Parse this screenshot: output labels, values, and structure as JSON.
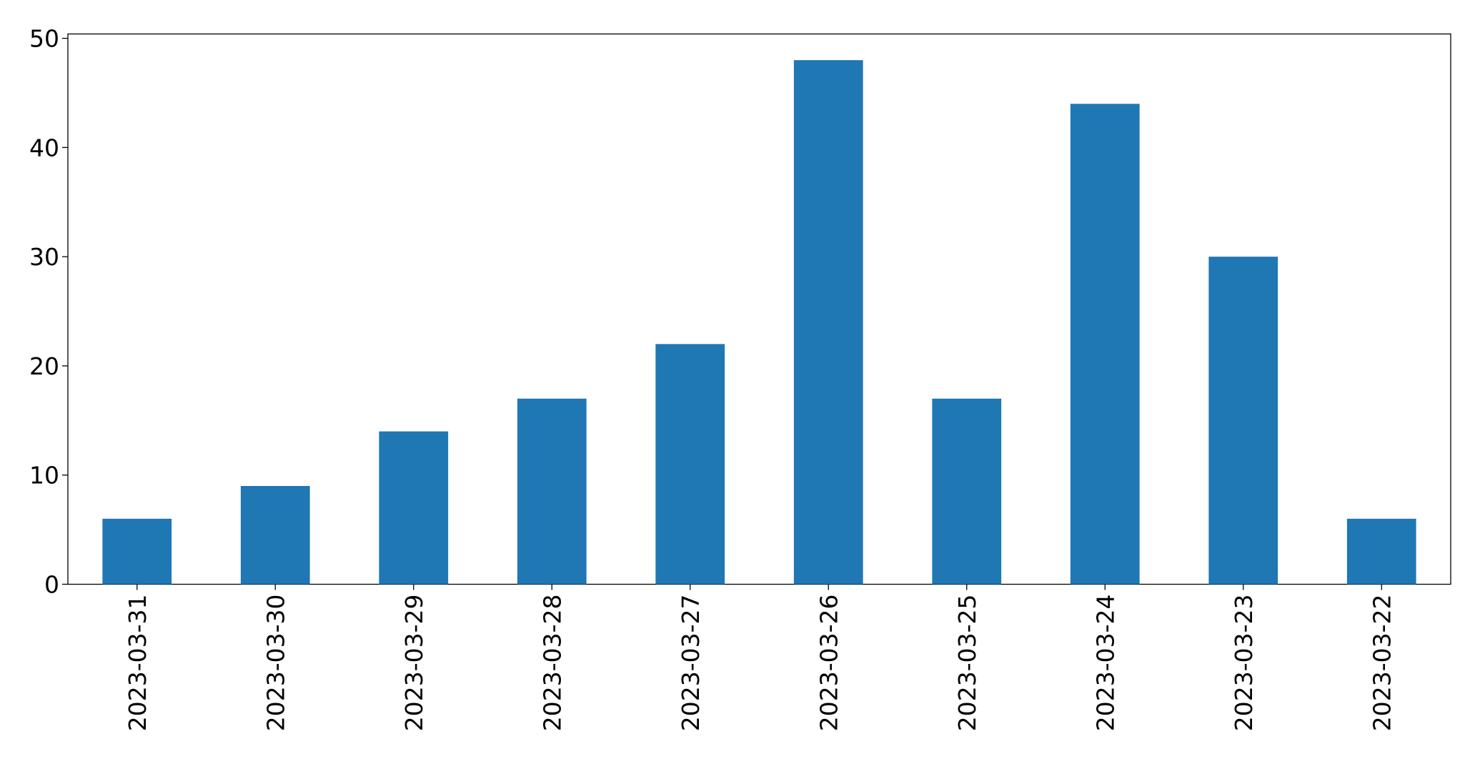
{
  "chart_data": {
    "type": "bar",
    "categories": [
      "2023-03-31",
      "2023-03-30",
      "2023-03-29",
      "2023-03-28",
      "2023-03-27",
      "2023-03-26",
      "2023-03-25",
      "2023-03-24",
      "2023-03-23",
      "2023-03-22"
    ],
    "values": [
      6,
      9,
      14,
      17,
      22,
      48,
      17,
      44,
      30,
      6
    ],
    "color": "#1f77b4",
    "ylim": [
      0,
      50.4
    ],
    "yticks": [
      0,
      10,
      20,
      30,
      40,
      50
    ],
    "grid": false
  }
}
